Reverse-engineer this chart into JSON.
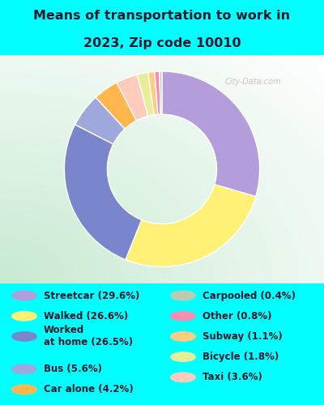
{
  "title_line1": "Means of transportation to work in",
  "title_line2": "2023, Zip code 10010",
  "background_color": "#00FFFF",
  "slices": [
    {
      "label": "Streetcar (29.6%)",
      "value": 29.6,
      "color": "#b39ddb"
    },
    {
      "label": "Walked (26.6%)",
      "value": 26.6,
      "color": "#fff176"
    },
    {
      "label": "Worked at home (26.5%)",
      "value": 26.5,
      "color": "#7986cb"
    },
    {
      "label": "Bus (5.6%)",
      "value": 5.6,
      "color": "#9fa8da"
    },
    {
      "label": "Car alone (4.2%)",
      "value": 4.2,
      "color": "#ffb74d"
    },
    {
      "label": "Taxi (3.6%)",
      "value": 3.6,
      "color": "#ffccbc"
    },
    {
      "label": "Bicycle (1.8%)",
      "value": 1.8,
      "color": "#e6ee9c"
    },
    {
      "label": "Subway (1.1%)",
      "value": 1.1,
      "color": "#ffcc80"
    },
    {
      "label": "Other (0.8%)",
      "value": 0.8,
      "color": "#f48fb1"
    },
    {
      "label": "Carpooled (0.4%)",
      "value": 0.4,
      "color": "#bcccb0"
    }
  ],
  "legend_items_col1": [
    {
      "label": "Streetcar (29.6%)",
      "color": "#b39ddb"
    },
    {
      "label": "Walked (26.6%)",
      "color": "#fff176"
    },
    {
      "label": "Worked\nat home (26.5%)",
      "color": "#7986cb"
    },
    {
      "label": "Bus (5.6%)",
      "color": "#9fa8da"
    },
    {
      "label": "Car alone (4.2%)",
      "color": "#ffb74d"
    }
  ],
  "legend_items_col2": [
    {
      "label": "Carpooled (0.4%)",
      "color": "#bcccb0"
    },
    {
      "label": "Other (0.8%)",
      "color": "#f48fb1"
    },
    {
      "label": "Subway (1.1%)",
      "color": "#ffcc80"
    },
    {
      "label": "Bicycle (1.8%)",
      "color": "#e6ee9c"
    },
    {
      "label": "Taxi (3.6%)",
      "color": "#ffccbc"
    }
  ],
  "watermark": "City-Data.com",
  "title_fontsize": 11.5,
  "legend_fontsize": 8.5
}
